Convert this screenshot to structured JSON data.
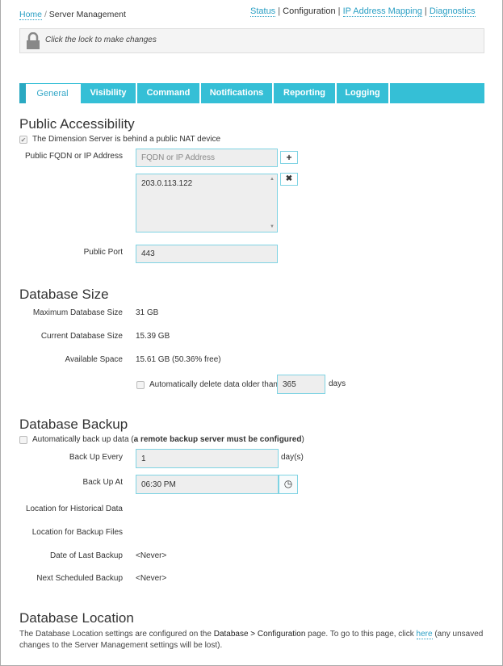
{
  "breadcrumb": {
    "home": "Home",
    "separator": "/",
    "current": "Server Management"
  },
  "topnav": {
    "items": [
      "Status",
      "Configuration",
      "IP Address Mapping",
      "Diagnostics"
    ],
    "active": "Configuration",
    "separator": "|"
  },
  "lock": {
    "icon": "lock-icon",
    "message": "Click the lock to make changes"
  },
  "tabs": [
    "General",
    "Visibility",
    "Command",
    "Notifications",
    "Reporting",
    "Logging"
  ],
  "active_tab": "General",
  "public_accessibility": {
    "heading": "Public Accessibility",
    "nat_checkbox": {
      "label": "The Dimension Server is behind a public NAT device",
      "checked": true
    },
    "fqdn_label": "Public FQDN or IP Address",
    "fqdn_placeholder": "FQDN or IP Address",
    "add_button": "+",
    "remove_button": "✖",
    "addresses": [
      "203.0.113.122"
    ],
    "port_label": "Public Port",
    "port_value": "443"
  },
  "database_size": {
    "heading": "Database Size",
    "rows": [
      {
        "label": "Maximum Database Size",
        "value": "31 GB"
      },
      {
        "label": "Current Database Size",
        "value": "15.39 GB"
      },
      {
        "label": "Available Space",
        "value": "15.61 GB (50.36% free)"
      }
    ],
    "auto_delete": {
      "label": "Automatically delete data older than",
      "value": "365",
      "unit": "days",
      "checked": false
    }
  },
  "database_backup": {
    "heading": "Database Backup",
    "auto_backup": {
      "label": "Automatically back up data (",
      "label_bold": "a remote backup server must be configured",
      "label_end": ")",
      "checked": false
    },
    "every_label": "Back Up Every",
    "every_value": "1",
    "every_unit": "day(s)",
    "at_label": "Back Up At",
    "at_value": "06:30 PM",
    "rows": [
      {
        "label": "Location for Historical Data",
        "value": ""
      },
      {
        "label": "Location for Backup Files",
        "value": ""
      },
      {
        "label": "Date of Last Backup",
        "value": "<Never>"
      },
      {
        "label": "Next Scheduled Backup",
        "value": "<Never>"
      }
    ]
  },
  "database_location": {
    "heading": "Database Location",
    "text1": "The Database Location settings are configured on the ",
    "bold": "Database > Configuration",
    "text2": " page. To go to this page, click ",
    "link": "here",
    "text3": " (any unsaved",
    "text4": "changes to the Server Management settings will be lost)."
  },
  "colors": {
    "accent": "#35bfd6",
    "link": "#2a9fc4"
  }
}
